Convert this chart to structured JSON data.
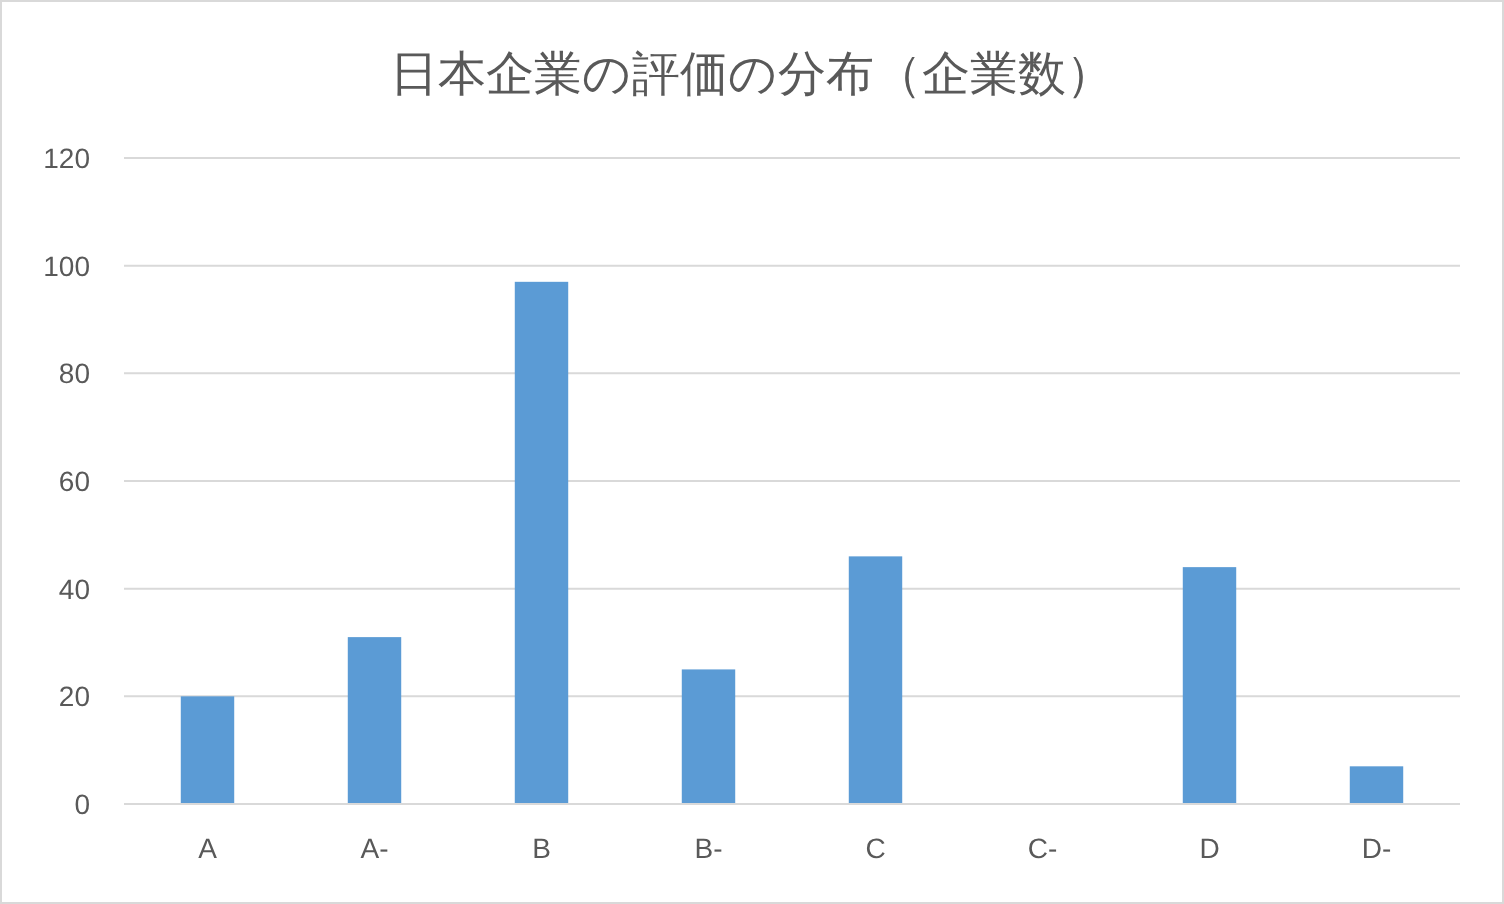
{
  "chart_data": {
    "type": "bar",
    "title": "日本企業の評価の分布（企業数）",
    "categories": [
      "A",
      "A-",
      "B",
      "B-",
      "C",
      "C-",
      "D",
      "D-"
    ],
    "values": [
      20,
      31,
      97,
      25,
      46,
      0,
      44,
      7
    ],
    "color": "#5b9bd5",
    "ylim": [
      0,
      120
    ],
    "yticks": [
      0,
      20,
      40,
      60,
      80,
      100,
      120
    ],
    "grid": "y"
  }
}
